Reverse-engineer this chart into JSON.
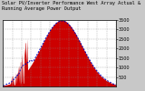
{
  "title1": "Solar PV/Inverter Performance West Array Actual & Running Average Power Output",
  "title2": "Solar PV/Inverter Performance West Array",
  "bg_color": "#c8c8c8",
  "plot_bg_color": "#ffffff",
  "bar_color": "#cc0000",
  "avg_color": "#0000bb",
  "grid_color": "#888888",
  "n_points": 288,
  "y_max": 3500,
  "y_ticks_right": [
    500,
    1000,
    1500,
    2000,
    2500,
    3000,
    3500
  ],
  "font_size": 3.5,
  "title_fontsize": 3.8
}
